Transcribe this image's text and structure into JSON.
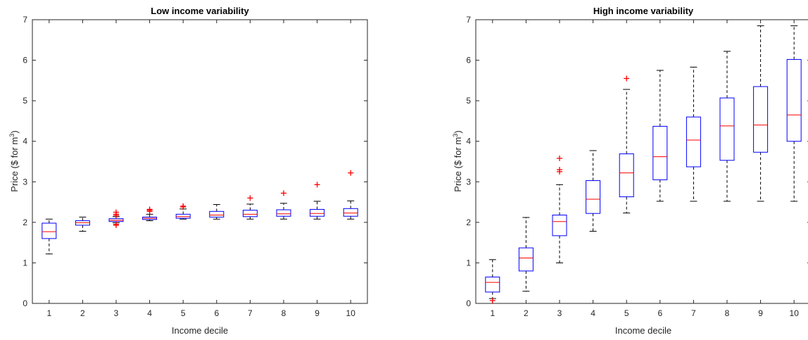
{
  "chart_data": [
    {
      "type": "box",
      "title": "Low income variability",
      "xlabel": "Income decile",
      "ylabel": "Price ($ for m",
      "ylabel_sup": "3",
      "ylabel_end": ")",
      "ylim": [
        0,
        7
      ],
      "yticks": [
        "0",
        "1",
        "2",
        "3",
        "4",
        "5",
        "6",
        "7"
      ],
      "categories": [
        "1",
        "2",
        "3",
        "4",
        "5",
        "6",
        "7",
        "8",
        "9",
        "10"
      ],
      "boxes": [
        {
          "lw": 1.22,
          "q1": 1.6,
          "med": 1.77,
          "q3": 1.98,
          "uw": 2.08,
          "outliers": []
        },
        {
          "lw": 1.78,
          "q1": 1.93,
          "med": 1.99,
          "q3": 2.04,
          "uw": 2.13,
          "outliers": []
        },
        {
          "lw": 1.99,
          "q1": 2.02,
          "med": 2.05,
          "q3": 2.09,
          "uw": 2.14,
          "outliers": [
            1.93,
            1.95,
            2.17,
            2.2,
            2.25
          ]
        },
        {
          "lw": 2.04,
          "q1": 2.07,
          "med": 2.1,
          "q3": 2.13,
          "uw": 2.2,
          "outliers": [
            2.27,
            2.3,
            2.32
          ]
        },
        {
          "lw": 2.08,
          "q1": 2.1,
          "med": 2.14,
          "q3": 2.2,
          "uw": 2.33,
          "outliers": [
            2.38,
            2.4
          ]
        },
        {
          "lw": 2.08,
          "q1": 2.13,
          "med": 2.18,
          "q3": 2.27,
          "uw": 2.44,
          "outliers": []
        },
        {
          "lw": 2.08,
          "q1": 2.14,
          "med": 2.2,
          "q3": 2.3,
          "uw": 2.45,
          "outliers": [
            2.6
          ]
        },
        {
          "lw": 2.08,
          "q1": 2.15,
          "med": 2.21,
          "q3": 2.31,
          "uw": 2.47,
          "outliers": [
            2.72
          ]
        },
        {
          "lw": 2.08,
          "q1": 2.15,
          "med": 2.22,
          "q3": 2.32,
          "uw": 2.52,
          "outliers": [
            2.93
          ]
        },
        {
          "lw": 2.08,
          "q1": 2.15,
          "med": 2.23,
          "q3": 2.34,
          "uw": 2.53,
          "outliers": [
            3.22
          ]
        }
      ]
    },
    {
      "type": "box",
      "title": "High income variability",
      "xlabel": "Income decile",
      "ylabel": "Price ($ for m",
      "ylabel_sup": "3",
      "ylabel_end": ")",
      "ylim": [
        0,
        7
      ],
      "yticks": [
        "0",
        "1",
        "2",
        "3",
        "4",
        "5",
        "6",
        "7"
      ],
      "categories": [
        "1",
        "2",
        "3",
        "4",
        "5",
        "6",
        "7",
        "8",
        "9",
        "10"
      ],
      "boxes": [
        {
          "lw": 0.12,
          "q1": 0.28,
          "med": 0.52,
          "q3": 0.65,
          "uw": 1.08,
          "outliers": [
            0.07
          ]
        },
        {
          "lw": 0.3,
          "q1": 0.8,
          "med": 1.12,
          "q3": 1.37,
          "uw": 2.12,
          "outliers": []
        },
        {
          "lw": 1.0,
          "q1": 1.67,
          "med": 2.02,
          "q3": 2.18,
          "uw": 2.93,
          "outliers": [
            3.25,
            3.3,
            3.58
          ]
        },
        {
          "lw": 1.78,
          "q1": 2.22,
          "med": 2.57,
          "q3": 3.03,
          "uw": 3.77,
          "outliers": []
        },
        {
          "lw": 2.23,
          "q1": 2.63,
          "med": 3.22,
          "q3": 3.69,
          "uw": 5.28,
          "outliers": [
            5.55
          ]
        },
        {
          "lw": 2.52,
          "q1": 3.05,
          "med": 3.62,
          "q3": 4.37,
          "uw": 5.75,
          "outliers": []
        },
        {
          "lw": 2.52,
          "q1": 3.37,
          "med": 4.03,
          "q3": 4.6,
          "uw": 5.83,
          "outliers": []
        },
        {
          "lw": 2.52,
          "q1": 3.53,
          "med": 4.38,
          "q3": 5.07,
          "uw": 6.22,
          "outliers": []
        },
        {
          "lw": 2.52,
          "q1": 3.73,
          "med": 4.4,
          "q3": 5.35,
          "uw": 6.85,
          "outliers": []
        },
        {
          "lw": 2.52,
          "q1": 4.0,
          "med": 4.65,
          "q3": 6.02,
          "uw": 6.85,
          "outliers": []
        }
      ]
    }
  ]
}
